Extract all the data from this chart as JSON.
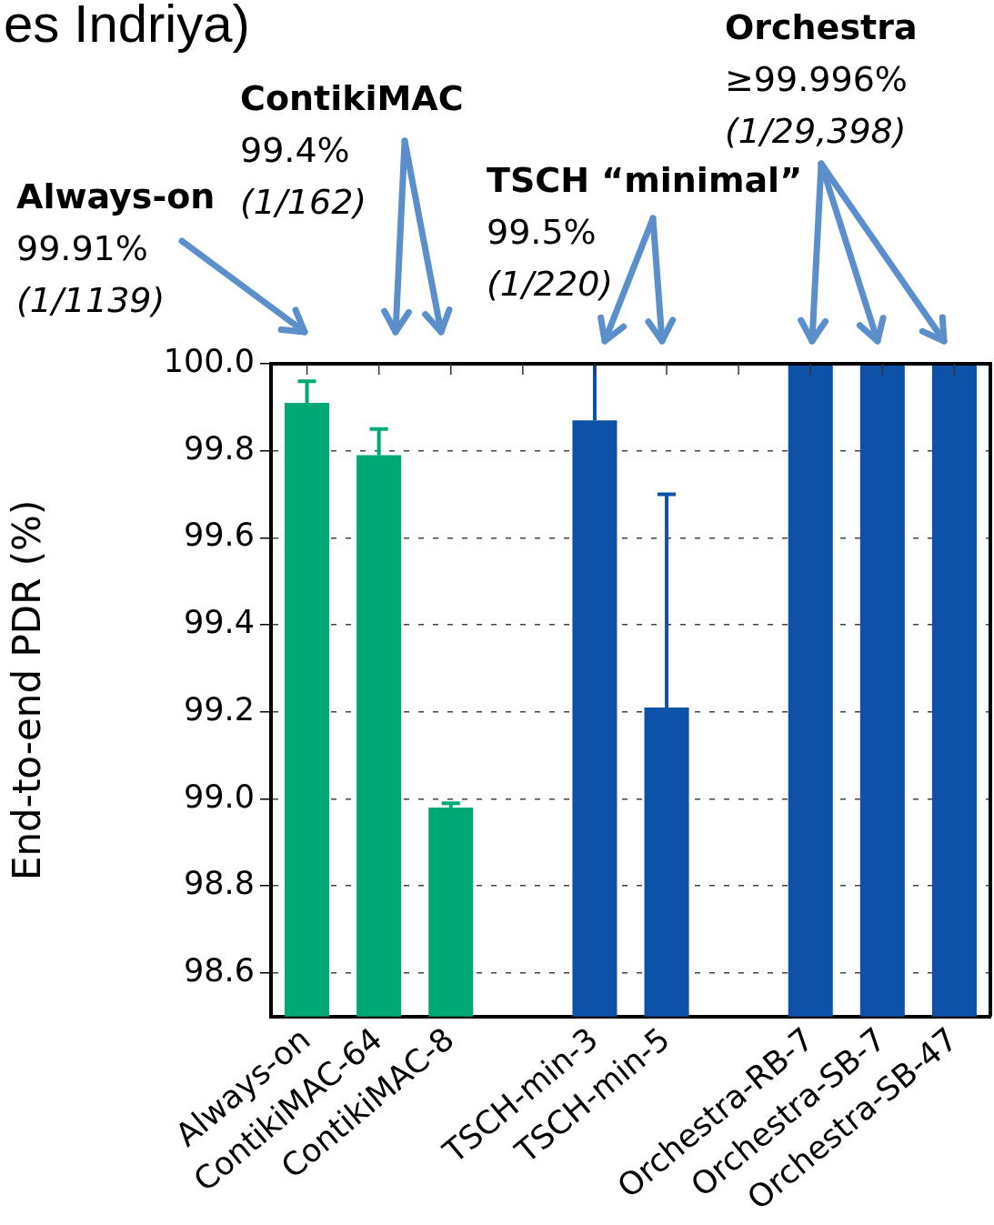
{
  "chart_data": {
    "type": "bar",
    "title": "es Indriya)",
    "ylabel": "End-to-end PDR (%)",
    "categories": [
      "Always-on",
      "ContikiMAC-64",
      "ContikiMAC-8",
      null,
      "TSCH-min-3",
      "TSCH-min-5",
      null,
      "Orchestra-RB-7",
      "Orchestra-SB-7",
      "Orchestra-SB-47"
    ],
    "values": [
      99.91,
      99.79,
      98.98,
      null,
      99.87,
      99.21,
      null,
      100.0,
      100.0,
      100.0
    ],
    "colors": [
      "#00a876",
      "#00a876",
      "#00a876",
      null,
      "#0d52a8",
      "#0d52a8",
      null,
      "#0d52a8",
      "#0d52a8",
      "#0d52a8"
    ],
    "errors": [
      [
        99.91,
        99.96
      ],
      [
        99.79,
        99.85
      ],
      [
        98.98,
        98.99
      ],
      null,
      [
        99.87,
        100.0
      ],
      [
        99.21,
        99.7
      ],
      null,
      null,
      null,
      null
    ],
    "ylim": [
      98.5,
      100.0
    ],
    "yticks": [
      {
        "value": 98.6,
        "label": "98.6"
      },
      {
        "value": 98.8,
        "label": "98.8"
      },
      {
        "value": 99.0,
        "label": "99.0"
      },
      {
        "value": 99.2,
        "label": "99.2"
      },
      {
        "value": 99.4,
        "label": "99.4"
      },
      {
        "value": 99.6,
        "label": "99.6"
      },
      {
        "value": 99.8,
        "label": "99.8"
      },
      {
        "value": 100.0,
        "label": "100.0"
      }
    ],
    "grid": "y",
    "annotations": [
      "Always-on\n99.91%\n(1/1139)",
      "ContikiMAC\n99.4%\n(1/162)",
      "TSCH “minimal”\n99.5%\n(1/220)",
      "Orchestra\n≥99.996%\n(1/29,398)"
    ]
  }
}
